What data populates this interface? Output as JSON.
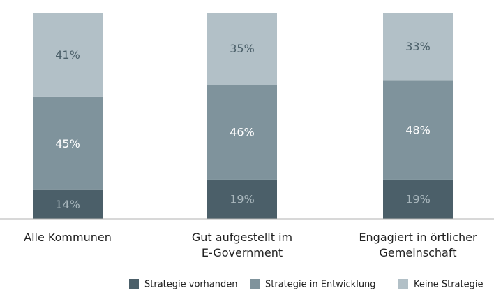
{
  "chart_data": {
    "type": "stacked_bar",
    "categories": [
      "Alle Kommunen",
      "Gut aufgestellt im\nE-Government",
      "Engagiert in örtlicher\nGemeinschaft"
    ],
    "series": [
      {
        "name": "Strategie vorhanden",
        "color": "#4b5f69",
        "values": [
          14,
          19,
          19
        ],
        "value_labels": [
          "14%",
          "19%",
          "19%"
        ]
      },
      {
        "name": "Strategie in Entwicklung",
        "color": "#7f939c",
        "values": [
          45,
          46,
          48
        ],
        "value_labels": [
          "45%",
          "46%",
          "48%"
        ]
      },
      {
        "name": "Keine Strategie",
        "color": "#b2c0c7",
        "values": [
          41,
          35,
          33
        ],
        "value_labels": [
          "41%",
          "35%",
          "33%"
        ]
      }
    ]
  }
}
